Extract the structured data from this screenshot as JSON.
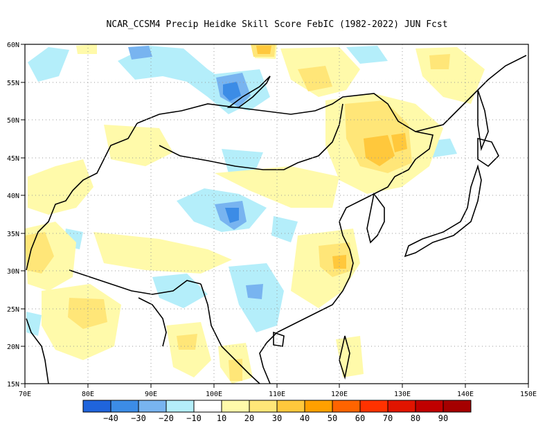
{
  "title": "NCAR_CCSM4 Precip Heidke Skill Score FebIC (1982-2022) JUN Fcst",
  "map": {
    "lon_labels": [
      "70E",
      "80E",
      "90E",
      "100E",
      "110E",
      "120E",
      "130E",
      "140E",
      "150E"
    ],
    "lat_labels": [
      "60N",
      "55N",
      "50N",
      "45N",
      "40N",
      "35N",
      "30N",
      "25N",
      "20N",
      "15N"
    ],
    "lon_range": [
      70,
      150
    ],
    "lat_range": [
      15,
      60
    ],
    "gridlines": true
  },
  "colorbar": {
    "colors": [
      "#1f64dc",
      "#3c8ce6",
      "#78b4f0",
      "#b4eefa",
      "#ffffff",
      "#fffaaa",
      "#ffe678",
      "#ffc83c",
      "#ffa000",
      "#ff6400",
      "#ff3200",
      "#e11400",
      "#c00000",
      "#a50000"
    ],
    "labels": [
      "−40",
      "−30",
      "−20",
      "−10",
      "10",
      "20",
      "30",
      "40",
      "50",
      "60",
      "70",
      "80",
      "90"
    ]
  },
  "chart_data": {
    "type": "heatmap",
    "title": "NCAR_CCSM4 Precip Heidke Skill Score FebIC (1982-2022) JUN Fcst",
    "xlabel": "",
    "ylabel": "",
    "xlim": [
      70,
      150
    ],
    "ylim": [
      15,
      60
    ],
    "levels": [
      -40,
      -30,
      -20,
      -10,
      10,
      20,
      30,
      40,
      50,
      60,
      70,
      80,
      90
    ],
    "patches": [
      {
        "lon": 89,
        "lat": 58.5,
        "value": -25
      },
      {
        "lon": 104,
        "lat": 53.5,
        "value": -35
      },
      {
        "lon": 101,
        "lat": 37,
        "value": -35
      },
      {
        "lon": 104,
        "lat": 27,
        "value": -25
      },
      {
        "lon": 97,
        "lat": 29,
        "value": -15
      },
      {
        "lon": 120,
        "lat": 46,
        "value": 30
      },
      {
        "lon": 127,
        "lat": 48,
        "value": 30
      },
      {
        "lon": 123,
        "lat": 30,
        "value": 25
      },
      {
        "lon": 108,
        "lat": 59,
        "value": 25
      },
      {
        "lon": 115,
        "lat": 59,
        "value": 20
      },
      {
        "lon": 72,
        "lat": 33,
        "value": 25
      },
      {
        "lon": 80,
        "lat": 24.5,
        "value": 25
      },
      {
        "lon": 112,
        "lat": 25,
        "value": 20
      }
    ]
  }
}
